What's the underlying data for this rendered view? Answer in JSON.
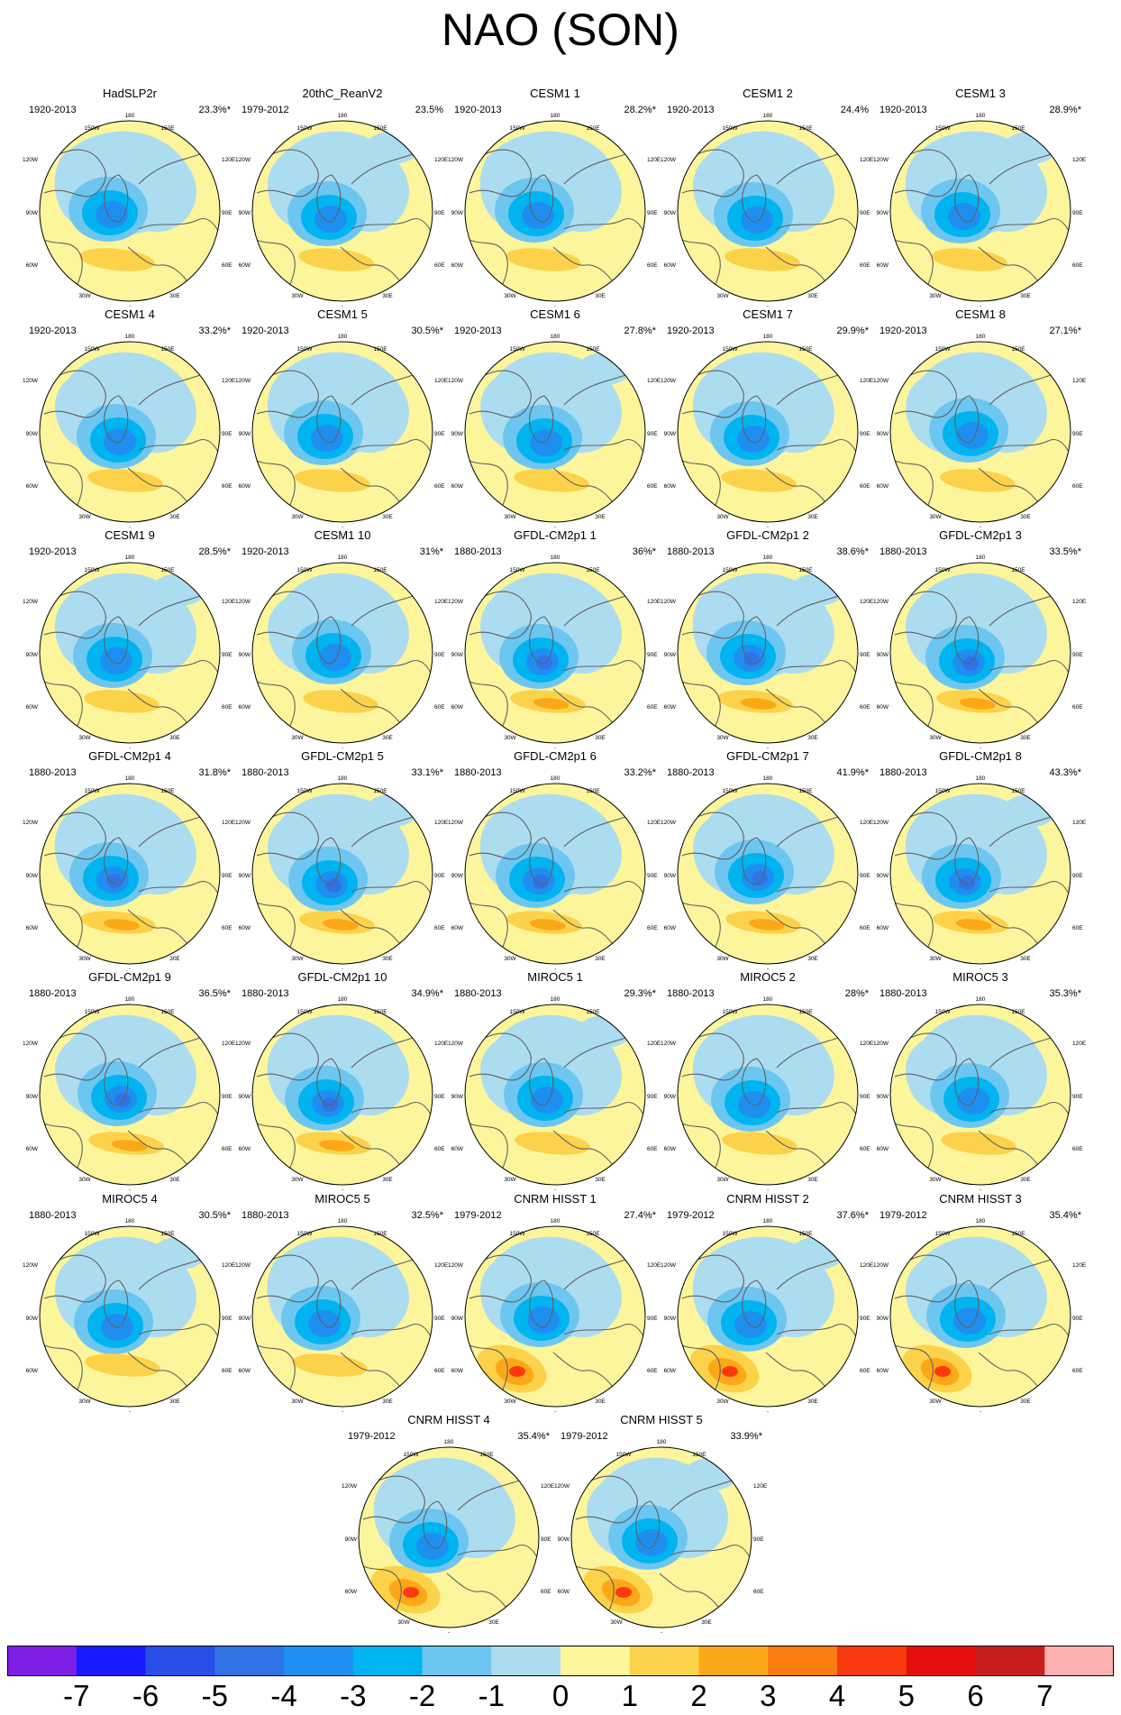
{
  "title": "NAO (SON)",
  "chart_data": {
    "type": "heatmap",
    "title": "NAO (SON)",
    "projection": "north polar stereographic",
    "lon_labels": [
      "180",
      "150W",
      "150E",
      "120W",
      "120E",
      "90W",
      "90E",
      "60W",
      "60E",
      "30W",
      "30E",
      "0"
    ],
    "panels": [
      {
        "name": "HadSLP2r",
        "period": "1920-2013",
        "variance": "23.3%*"
      },
      {
        "name": "20thC_ReanV2",
        "period": "1979-2012",
        "variance": "23.5%"
      },
      {
        "name": "CESM1 1",
        "period": "1920-2013",
        "variance": "28.2%*"
      },
      {
        "name": "CESM1 2",
        "period": "1920-2013",
        "variance": "24.4%"
      },
      {
        "name": "CESM1 3",
        "period": "1920-2013",
        "variance": "28.9%*"
      },
      {
        "name": "CESM1 4",
        "period": "1920-2013",
        "variance": "33.2%*"
      },
      {
        "name": "CESM1 5",
        "period": "1920-2013",
        "variance": "30.5%*"
      },
      {
        "name": "CESM1 6",
        "period": "1920-2013",
        "variance": "27.8%*"
      },
      {
        "name": "CESM1 7",
        "period": "1920-2013",
        "variance": "29.9%*"
      },
      {
        "name": "CESM1 8",
        "period": "1920-2013",
        "variance": "27.1%*"
      },
      {
        "name": "CESM1 9",
        "period": "1920-2013",
        "variance": "28.5%*"
      },
      {
        "name": "CESM1 10",
        "period": "1920-2013",
        "variance": "31%*"
      },
      {
        "name": "GFDL-CM2p1 1",
        "period": "1880-2013",
        "variance": "36%*"
      },
      {
        "name": "GFDL-CM2p1 2",
        "period": "1880-2013",
        "variance": "38.6%*"
      },
      {
        "name": "GFDL-CM2p1 3",
        "period": "1880-2013",
        "variance": "33.5%*"
      },
      {
        "name": "GFDL-CM2p1 4",
        "period": "1880-2013",
        "variance": "31.8%*"
      },
      {
        "name": "GFDL-CM2p1 5",
        "period": "1880-2013",
        "variance": "33.1%*"
      },
      {
        "name": "GFDL-CM2p1 6",
        "period": "1880-2013",
        "variance": "33.2%*"
      },
      {
        "name": "GFDL-CM2p1 7",
        "period": "1880-2013",
        "variance": "41.9%*"
      },
      {
        "name": "GFDL-CM2p1 8",
        "period": "1880-2013",
        "variance": "43.3%*"
      },
      {
        "name": "GFDL-CM2p1 9",
        "period": "1880-2013",
        "variance": "36.5%*"
      },
      {
        "name": "GFDL-CM2p1 10",
        "period": "1880-2013",
        "variance": "34.9%*"
      },
      {
        "name": "MIROC5 1",
        "period": "1880-2013",
        "variance": "29.3%*"
      },
      {
        "name": "MIROC5 2",
        "period": "1880-2013",
        "variance": "28%*"
      },
      {
        "name": "MIROC5 3",
        "period": "1880-2013",
        "variance": "35.3%*"
      },
      {
        "name": "MIROC5 4",
        "period": "1880-2013",
        "variance": "30.5%*"
      },
      {
        "name": "MIROC5 5",
        "period": "1880-2013",
        "variance": "32.5%*"
      },
      {
        "name": "CNRM HISST 1",
        "period": "1979-2012",
        "variance": "27.4%*"
      },
      {
        "name": "CNRM HISST 2",
        "period": "1979-2012",
        "variance": "37.6%*"
      },
      {
        "name": "CNRM HISST 3",
        "period": "1979-2012",
        "variance": "35.4%*"
      },
      {
        "name": "CNRM HISST 4",
        "period": "1979-2012",
        "variance": "35.4%*"
      },
      {
        "name": "CNRM HISST 5",
        "period": "1979-2012",
        "variance": "33.9%*"
      }
    ],
    "colorbar": {
      "labels": [
        "-7",
        "-6",
        "-5",
        "-4",
        "-3",
        "-2",
        "-1",
        "0",
        "1",
        "2",
        "3",
        "4",
        "5",
        "6",
        "7"
      ],
      "colors": [
        "#7f1fe6",
        "#1a1aff",
        "#2850e8",
        "#3073e6",
        "#1e8ff0",
        "#00b4f0",
        "#6cc6f0",
        "#acdcf0",
        "#fdf59b",
        "#fcd24a",
        "#fba818",
        "#fb7d0e",
        "#fa3a0e",
        "#e60d0d",
        "#c81e1e",
        "#fdb0b0"
      ]
    }
  }
}
